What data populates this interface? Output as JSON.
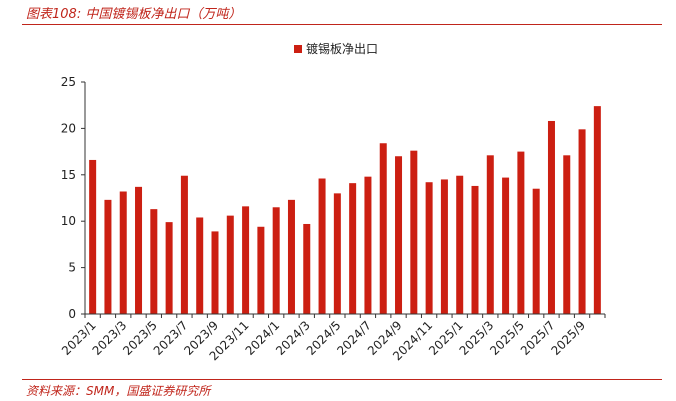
{
  "figure": {
    "title": "图表108:  中国镀锡板净出口（万吨）",
    "source": "资料来源：SMM，国盛证券研究所"
  },
  "colors": {
    "accent": "#c0251b",
    "bar": "#cc1f12"
  },
  "chart_data": {
    "type": "bar",
    "legend": {
      "label": "镀锡板净出口",
      "position": "top-center"
    },
    "categories": [
      "2023/1",
      "2023/2",
      "2023/3",
      "2023/4",
      "2023/5",
      "2023/6",
      "2023/7",
      "2023/8",
      "2023/9",
      "2023/10",
      "2023/11",
      "2023/12",
      "2024/1",
      "2024/2",
      "2024/3",
      "2024/4",
      "2024/5",
      "2024/6",
      "2024/7",
      "2024/8",
      "2024/9",
      "2024/10",
      "2024/11",
      "2024/12",
      "2025/1",
      "2025/2",
      "2025/3",
      "2025/4",
      "2025/5",
      "2025/6",
      "2025/7",
      "2025/8",
      "2025/9",
      "2025/10"
    ],
    "xtick_labels": [
      "2023/1",
      "2023/3",
      "2023/5",
      "2023/7",
      "2023/9",
      "2023/11",
      "2024/1",
      "2024/3",
      "2024/5",
      "2024/7",
      "2024/9",
      "2024/11",
      "2025/1",
      "2025/3",
      "2025/5",
      "2025/7",
      "2025/9"
    ],
    "values": [
      16.6,
      12.3,
      13.2,
      13.7,
      11.3,
      9.9,
      14.9,
      10.4,
      8.9,
      10.6,
      11.6,
      9.4,
      11.5,
      12.3,
      9.7,
      14.6,
      13.0,
      14.1,
      14.8,
      18.4,
      17.0,
      17.6,
      14.2,
      14.5,
      14.9,
      13.8,
      17.1,
      14.7,
      17.5,
      13.5,
      20.8,
      17.1,
      19.9,
      22.4
    ],
    "yticks": [
      0,
      5,
      10,
      15,
      20,
      25
    ],
    "ylim": [
      0,
      25
    ]
  }
}
